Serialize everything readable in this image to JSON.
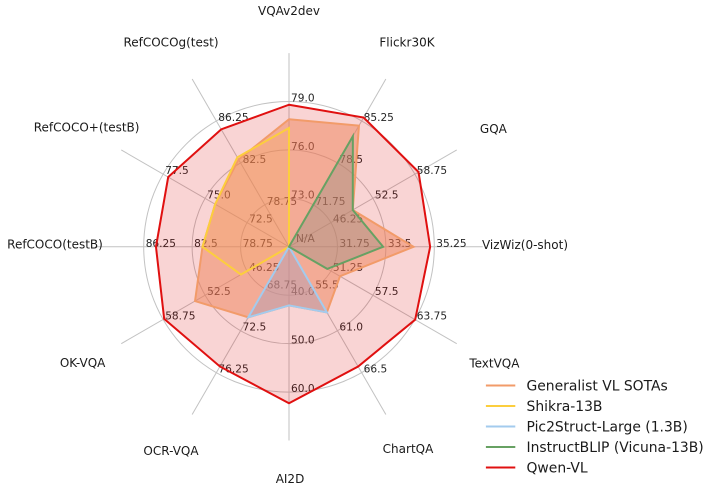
{
  "figure": {
    "background": "#ffffff",
    "grid_color": "#c2c2c2",
    "text_color": "#1a1a1a",
    "tick_color": "#262626"
  },
  "chart_data": {
    "type": "radar",
    "na_label": "N/A",
    "grid": true,
    "legend_position": "lower right",
    "axes": [
      {
        "label": "VQAv2dev",
        "min": 70,
        "max": 79,
        "ticks": [
          "73.0",
          "76.0",
          "79.0"
        ]
      },
      {
        "label": "Flickr30K",
        "min": 65,
        "max": 85.25,
        "ticks": [
          "71.75",
          "78.5",
          "85.25"
        ]
      },
      {
        "label": "GQA",
        "min": 40,
        "max": 58.75,
        "ticks": [
          "46.25",
          "52.5",
          "58.75"
        ]
      },
      {
        "label": "VizWiz(0-shot)",
        "min": 30,
        "max": 35.25,
        "ticks": [
          "31.75",
          "33.5",
          "35.25"
        ]
      },
      {
        "label": "TextVQA",
        "min": 45,
        "max": 63.75,
        "ticks": [
          "51.25",
          "57.5",
          "63.75"
        ]
      },
      {
        "label": "ChartQA",
        "min": 50,
        "max": 66.5,
        "ticks": [
          "55.5",
          "61.0",
          "66.5"
        ]
      },
      {
        "label": "AI2D",
        "min": 30,
        "max": 60,
        "ticks": [
          "40.0",
          "50.0",
          "60.0"
        ]
      },
      {
        "label": "OCR-VQA",
        "min": 65,
        "max": 76.25,
        "ticks": [
          "68.75",
          "72.5",
          "76.25"
        ]
      },
      {
        "label": "OK-VQA",
        "min": 40,
        "max": 58.75,
        "ticks": [
          "46.25",
          "52.5",
          "58.75"
        ]
      },
      {
        "label": "RefCOCO(testB)",
        "min": 75,
        "max": 86.25,
        "ticks": [
          "78.75",
          "82.5",
          "86.25"
        ]
      },
      {
        "label": "RefCOCO+(testB)",
        "min": 70,
        "max": 77.5,
        "ticks": [
          "72.5",
          "75.0",
          "77.5"
        ]
      },
      {
        "label": "RefCOCOg(test)",
        "min": 75,
        "max": 86.25,
        "ticks": [
          "78.75",
          "82.5",
          "86.25"
        ]
      }
    ],
    "series": [
      {
        "name": "Generalist VL SOTAs",
        "color": "#f29b69",
        "fill_color": "#f29b69",
        "fill_opacity": 0.5,
        "line_width": 2,
        "values": [
          77.9,
          84.5,
          49.5,
          34.5,
          52.6,
          58.6,
          42.1,
          71.3,
          54.0,
          81.7,
          74.4,
          82.8
        ]
      },
      {
        "name": "Shikra-13B",
        "color": "#fcce3d",
        "fill_color": "#fcce3d",
        "fill_opacity": 0.15,
        "line_width": 2,
        "values": [
          77.36,
          null,
          null,
          null,
          null,
          null,
          null,
          null,
          47.16,
          81.7,
          74.4,
          83.0
        ]
      },
      {
        "name": "Pic2Struct-Large (1.3B)",
        "color": "#a3cbee",
        "fill_color": "#9abadb",
        "fill_opacity": 0.4,
        "line_width": 2,
        "values": [
          null,
          null,
          null,
          null,
          null,
          58.6,
          42.1,
          71.3,
          null,
          null,
          null,
          null
        ]
      },
      {
        "name": "InstructBLIP (Vicuna-13B)",
        "color": "#67a163",
        "fill_color": "#71a396",
        "fill_opacity": 0.32,
        "line_width": 2,
        "values": [
          null,
          82.8,
          49.5,
          33.4,
          50.7,
          null,
          null,
          null,
          null,
          null,
          null,
          null
        ]
      },
      {
        "name": "Qwen-VL",
        "color": "#e01010",
        "fill_color": "#e01010",
        "fill_opacity": 0.18,
        "line_width": 2,
        "values": [
          78.8,
          85.8,
          59.3,
          35.1,
          63.8,
          65.7,
          62.3,
          75.7,
          58.6,
          85.3,
          77.2,
          85.5
        ]
      }
    ]
  }
}
